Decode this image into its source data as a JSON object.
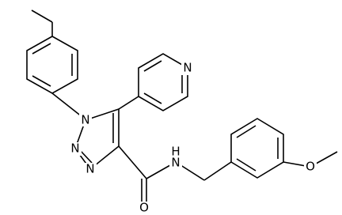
{
  "atoms": [
    {
      "label": "N"
    },
    {
      "label": "N"
    },
    {
      "label": "N"
    },
    {
      "label": "N"
    },
    {
      "label": "N"
    },
    {
      "label": "H"
    },
    {
      "label": "O"
    },
    {
      "label": "O"
    }
  ]
}
